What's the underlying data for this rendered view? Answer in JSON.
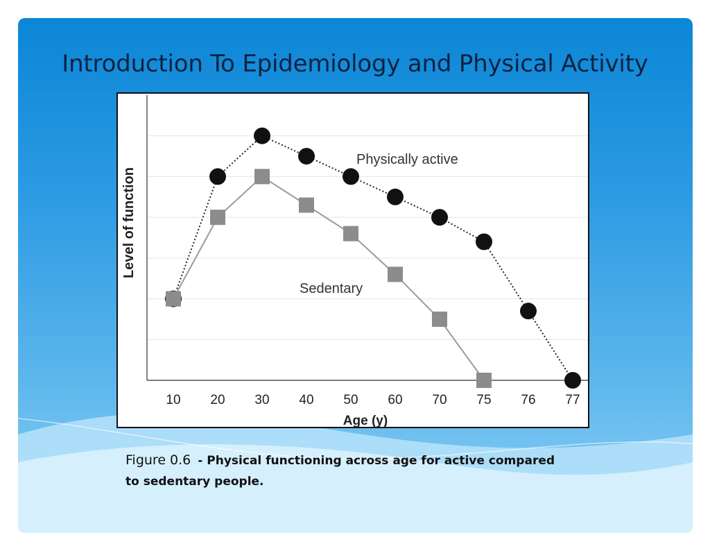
{
  "slide": {
    "title": "Introduction To Epidemiology and Physical Activity",
    "background_colors": [
      "#0b86d6",
      "#8fd0f5"
    ]
  },
  "caption": {
    "label": "Figure 0.6",
    "text": "- Physical functioning across age for active compared to sedentary people."
  },
  "chart_data": {
    "type": "line",
    "title": "",
    "xlabel": "Age (y)",
    "ylabel": "Level of function",
    "categories": [
      "10",
      "20",
      "30",
      "40",
      "50",
      "60",
      "70",
      "75",
      "76",
      "77"
    ],
    "ylim": [
      0,
      7
    ],
    "grid": true,
    "series": [
      {
        "name": "Physically active",
        "marker": "circle",
        "line_style": "dotted",
        "color": "#111111",
        "values": [
          2.0,
          5.0,
          6.0,
          5.5,
          5.0,
          4.5,
          4.0,
          3.4,
          1.7,
          0.0
        ]
      },
      {
        "name": "Sedentary",
        "marker": "square",
        "line_style": "solid",
        "color": "#8c8c8c",
        "values": [
          2.0,
          4.0,
          5.0,
          4.3,
          3.6,
          2.6,
          1.5,
          0.0,
          null,
          null
        ]
      }
    ]
  }
}
